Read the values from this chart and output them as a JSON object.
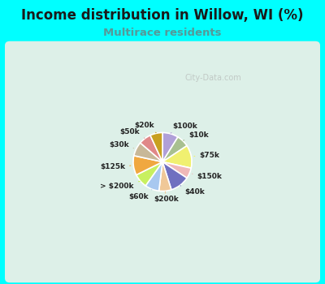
{
  "title": "Income distribution in Willow, WI (%)",
  "subtitle": "Multirace residents",
  "title_color": "#1a1a1a",
  "subtitle_color": "#559999",
  "background_color": "#00ffff",
  "chart_bg_left": "#e8f5f0",
  "chart_bg_right": "#ffffff",
  "watermark": "City-Data.com",
  "slices": [
    {
      "label": "$100k",
      "value": 9,
      "color": "#b0a0d8"
    },
    {
      "label": "$10k",
      "value": 7,
      "color": "#a8c090"
    },
    {
      "label": "$75k",
      "value": 13,
      "color": "#f0f070"
    },
    {
      "label": "$150k",
      "value": 6,
      "color": "#f0b8b8"
    },
    {
      "label": "$40k",
      "value": 11,
      "color": "#7070c0"
    },
    {
      "label": "$200k",
      "value": 7,
      "color": "#f0c898"
    },
    {
      "label": "$60k",
      "value": 8,
      "color": "#a8c8f0"
    },
    {
      "label": "> $200k",
      "value": 8,
      "color": "#c8f060"
    },
    {
      "label": "$125k",
      "value": 11,
      "color": "#f0a840"
    },
    {
      "label": "$30k",
      "value": 8,
      "color": "#c8b898"
    },
    {
      "label": "$50k",
      "value": 7,
      "color": "#e08888"
    },
    {
      "label": "$20k",
      "value": 7,
      "color": "#c8a020"
    }
  ]
}
